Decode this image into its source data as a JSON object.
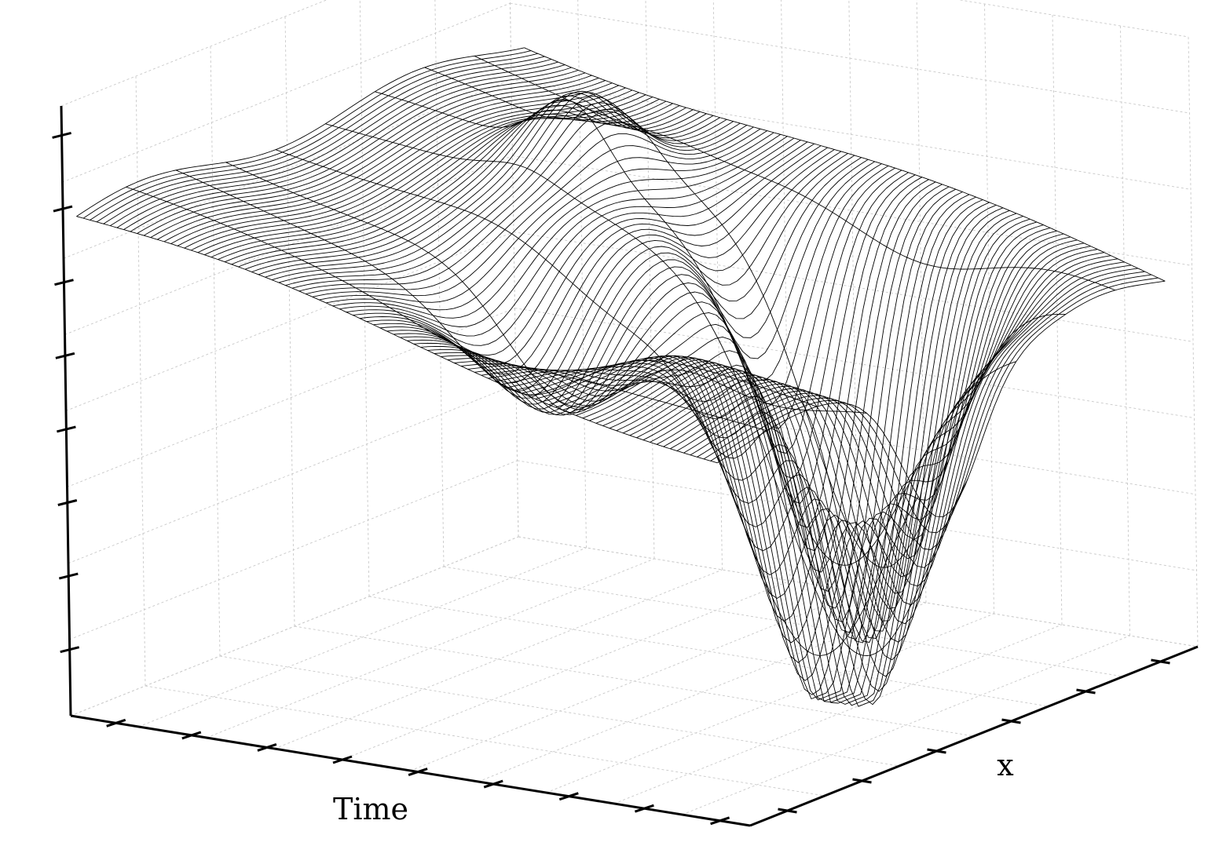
{
  "chart_data": {
    "type": "surface",
    "style": "wireframe",
    "grid": true,
    "xlabel": "Time",
    "ylabel": "x",
    "zlabel": "",
    "xlim": [
      0,
      10
    ],
    "ylim": [
      0,
      6
    ],
    "zlim": [
      0,
      8
    ],
    "x_tick_count": 9,
    "y_tick_count": 6,
    "z_tick_count": 8,
    "surface": {
      "baseline": 6.6,
      "slope": -0.19,
      "events": [
        {
          "time": 8.0,
          "x": 3.0,
          "depth": 5.2,
          "width_time": 1.1,
          "width_x": 0.5
        },
        {
          "time": 6.8,
          "x": 4.4,
          "depth": 4.9,
          "width_time": 1.0,
          "width_x": 0.45
        },
        {
          "time": 5.2,
          "x": 1.9,
          "depth": 1.6,
          "width_time": 0.9,
          "width_x": 0.6
        },
        {
          "time": 3.1,
          "x": 4.2,
          "depth": -0.9,
          "width_time": 0.5,
          "width_x": 0.5
        }
      ]
    },
    "colors": {
      "mesh": "#000000",
      "axis": "#000000",
      "grid": "#c9c9c9",
      "background": "#ffffff"
    }
  }
}
